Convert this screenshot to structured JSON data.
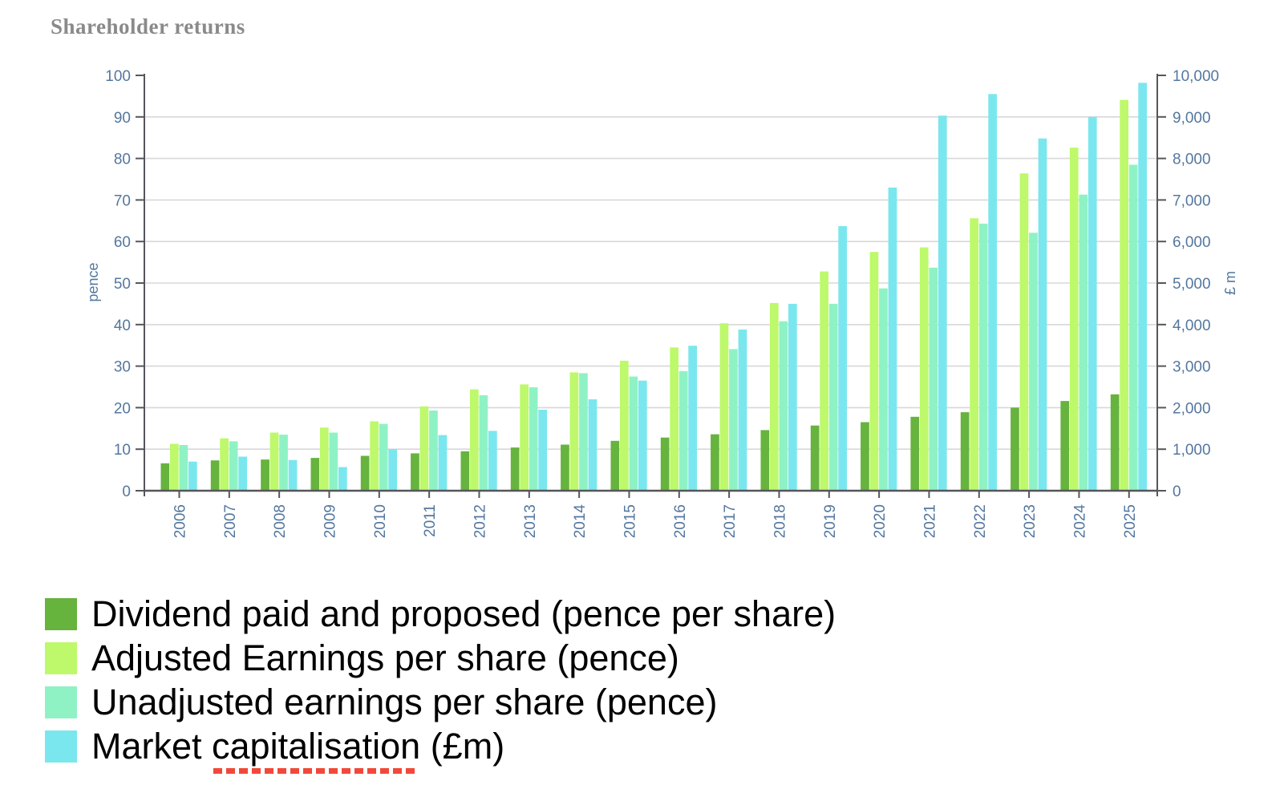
{
  "page": {
    "title": "Shareholder returns"
  },
  "colors": {
    "dividend": "#66b33e",
    "adjusted": "#bdf96b",
    "unadjusted": "#8ff2c5",
    "market_cap": "#7ae7ee",
    "grid": "#d8d8d8",
    "axis_line": "#55565a",
    "axis_text": "#54779e",
    "title_text": "#8a8a8a",
    "spellcheck_red": "#f2483a"
  },
  "legend": {
    "items": [
      {
        "key": "dividend",
        "label": "Dividend paid and proposed (pence per share)"
      },
      {
        "key": "adjusted",
        "label": "Adjusted Earnings per share (pence)"
      },
      {
        "key": "unadjusted",
        "label": "Unadjusted earnings per share (pence)"
      },
      {
        "key": "market_cap",
        "label": "Market capitalisation (£m)",
        "prefix": "Market ",
        "underlined": "capitalisation",
        "suffix": " (£m)"
      }
    ]
  },
  "chart_data": {
    "type": "bar",
    "title": "Shareholder returns",
    "categories": [
      "2006",
      "2007",
      "2008",
      "2009",
      "2010",
      "2011",
      "2012",
      "2013",
      "2014",
      "2015",
      "2016",
      "2017",
      "2018",
      "2019",
      "2020",
      "2021",
      "2022",
      "2023",
      "2024",
      "2025"
    ],
    "series": [
      {
        "name": "Dividend paid and proposed (pence per share)",
        "axis": "left",
        "color_key": "dividend",
        "values": [
          6.6,
          7.3,
          7.5,
          7.9,
          8.4,
          9.0,
          9.5,
          10.4,
          11.1,
          12.0,
          12.8,
          13.6,
          14.6,
          15.7,
          16.5,
          17.8,
          18.9,
          20.0,
          21.6,
          23.2
        ]
      },
      {
        "name": "Adjusted Earnings per share (pence)",
        "axis": "left",
        "color_key": "adjusted",
        "values": [
          11.3,
          12.6,
          14.0,
          15.2,
          16.7,
          20.3,
          24.4,
          25.6,
          28.5,
          31.3,
          34.5,
          40.3,
          45.2,
          52.8,
          57.5,
          58.6,
          65.6,
          76.4,
          82.6,
          94.1
        ]
      },
      {
        "name": "Unadjusted earnings per share (pence)",
        "axis": "left",
        "color_key": "unadjusted",
        "values": [
          11.0,
          11.9,
          13.5,
          14.0,
          16.1,
          19.3,
          23.0,
          24.9,
          28.3,
          27.5,
          28.8,
          34.1,
          40.8,
          45.0,
          48.7,
          53.7,
          64.3,
          62.1,
          71.3,
          78.5
        ]
      },
      {
        "name": "Market capitalisation (£m)",
        "axis": "right",
        "color_key": "market_cap",
        "values": [
          700,
          820,
          740,
          570,
          1000,
          1340,
          1440,
          1950,
          2200,
          2650,
          3490,
          3880,
          4500,
          6370,
          7300,
          9030,
          9550,
          8480,
          9000,
          9820
        ]
      }
    ],
    "left_axis": {
      "label": "pence",
      "min": 0,
      "max": 100,
      "tick_step": 10,
      "tick_labels": [
        "0",
        "10",
        "20",
        "30",
        "40",
        "50",
        "60",
        "70",
        "80",
        "90",
        "100"
      ]
    },
    "right_axis": {
      "label": "£ m",
      "min": 0,
      "max": 10000,
      "tick_step": 1000,
      "tick_labels": [
        "0",
        "1,000",
        "2,000",
        "3,000",
        "4,000",
        "5,000",
        "6,000",
        "7,000",
        "8,000",
        "9,000",
        "10,000"
      ]
    },
    "grid": true,
    "legend_position": "bottom-left"
  }
}
